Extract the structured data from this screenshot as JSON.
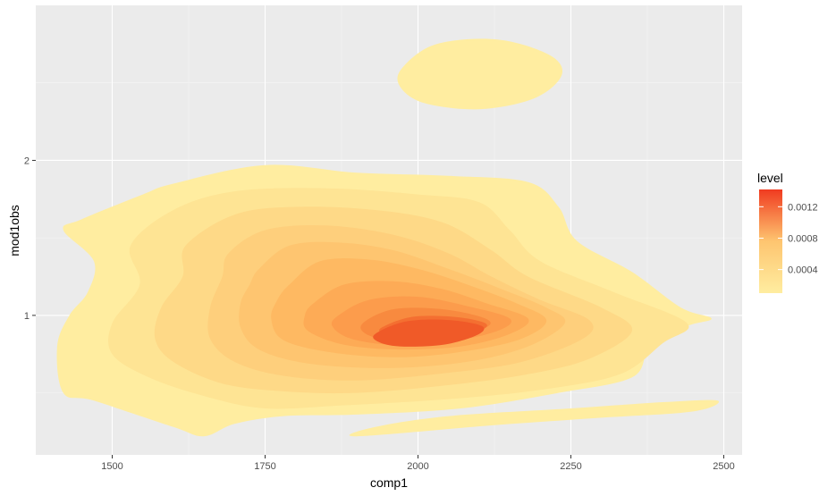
{
  "chart_data": {
    "type": "area",
    "subtype": "filled-density-contour",
    "xlabel": "comp1",
    "ylabel": "mod1obs",
    "x_ticks": [
      1500,
      1750,
      2000,
      2250,
      2500
    ],
    "x_tick_labels": [
      "1500",
      "1750",
      "2000",
      "2250",
      "2500"
    ],
    "y_ticks": [
      1,
      2
    ],
    "y_tick_labels": [
      "1",
      "2"
    ],
    "xlim": [
      1375,
      2530
    ],
    "ylim": [
      0.1,
      3.0
    ],
    "grid": true,
    "background": "#ebebeb",
    "legend": {
      "title": "level",
      "position": "right",
      "ticks": [
        0.0004,
        0.0008,
        0.0012
      ],
      "tick_labels": [
        "0.0004",
        "0.0008",
        "0.0012"
      ],
      "range": [
        0.0001,
        0.00142
      ],
      "color_low": "#ffeda0",
      "color_high": "#f03b20"
    },
    "contours": [
      {
        "level": 0.0001,
        "color": "#ffeda0",
        "shapes": [
          [
            [
              1450,
              1.62
            ],
            [
              1550,
              1.78
            ],
            [
              1600,
              1.85
            ],
            [
              1750,
              1.97
            ],
            [
              1900,
              1.92
            ],
            [
              2050,
              1.9
            ],
            [
              2180,
              1.86
            ],
            [
              2230,
              1.7
            ],
            [
              2260,
              1.48
            ],
            [
              2350,
              1.28
            ],
            [
              2430,
              1.05
            ],
            [
              2480,
              0.98
            ],
            [
              2440,
              0.93
            ],
            [
              2380,
              0.8
            ],
            [
              2350,
              0.6
            ],
            [
              2230,
              0.5
            ],
            [
              2070,
              0.4
            ],
            [
              1900,
              0.36
            ],
            [
              1780,
              0.35
            ],
            [
              1700,
              0.3
            ],
            [
              1650,
              0.22
            ],
            [
              1600,
              0.28
            ],
            [
              1470,
              0.45
            ],
            [
              1420,
              0.5
            ],
            [
              1410,
              0.8
            ],
            [
              1430,
              1.0
            ],
            [
              1460,
              1.15
            ],
            [
              1470,
              1.35
            ],
            [
              1420,
              1.55
            ]
          ],
          [
            [
              1975,
              2.6
            ],
            [
              2030,
              2.75
            ],
            [
              2130,
              2.78
            ],
            [
              2215,
              2.68
            ],
            [
              2235,
              2.55
            ],
            [
              2190,
              2.4
            ],
            [
              2100,
              2.33
            ],
            [
              2010,
              2.37
            ],
            [
              1970,
              2.48
            ]
          ],
          [
            [
              1900,
              0.22
            ],
            [
              2120,
              0.29
            ],
            [
              2300,
              0.34
            ],
            [
              2450,
              0.38
            ],
            [
              2490,
              0.45
            ],
            [
              2400,
              0.44
            ],
            [
              2250,
              0.4
            ],
            [
              2050,
              0.35
            ],
            [
              1930,
              0.28
            ]
          ]
        ]
      },
      {
        "level": 0.0002,
        "color": "#fee494",
        "shapes": [
          [
            [
              1530,
              1.45
            ],
            [
              1600,
              1.68
            ],
            [
              1700,
              1.8
            ],
            [
              1850,
              1.82
            ],
            [
              2000,
              1.78
            ],
            [
              2100,
              1.73
            ],
            [
              2150,
              1.55
            ],
            [
              2200,
              1.35
            ],
            [
              2320,
              1.15
            ],
            [
              2440,
              0.95
            ],
            [
              2400,
              0.82
            ],
            [
              2330,
              0.62
            ],
            [
              2200,
              0.52
            ],
            [
              2050,
              0.46
            ],
            [
              1880,
              0.42
            ],
            [
              1750,
              0.4
            ],
            [
              1650,
              0.48
            ],
            [
              1560,
              0.6
            ],
            [
              1500,
              0.75
            ],
            [
              1500,
              0.95
            ],
            [
              1545,
              1.2
            ]
          ]
        ]
      },
      {
        "level": 0.0003,
        "color": "#fed987",
        "shapes": [
          [
            [
              1620,
              1.45
            ],
            [
              1700,
              1.65
            ],
            [
              1800,
              1.7
            ],
            [
              1930,
              1.68
            ],
            [
              2040,
              1.6
            ],
            [
              2120,
              1.42
            ],
            [
              2180,
              1.25
            ],
            [
              2300,
              1.05
            ],
            [
              2350,
              0.9
            ],
            [
              2280,
              0.72
            ],
            [
              2180,
              0.62
            ],
            [
              2050,
              0.55
            ],
            [
              1900,
              0.5
            ],
            [
              1780,
              0.51
            ],
            [
              1680,
              0.56
            ],
            [
              1600,
              0.7
            ],
            [
              1570,
              0.85
            ],
            [
              1580,
              1.05
            ],
            [
              1615,
              1.25
            ]
          ]
        ]
      },
      {
        "level": 0.0004,
        "color": "#fecf7c",
        "shapes": [
          [
            [
              1690,
              1.4
            ],
            [
              1750,
              1.55
            ],
            [
              1850,
              1.58
            ],
            [
              1960,
              1.52
            ],
            [
              2050,
              1.4
            ],
            [
              2120,
              1.25
            ],
            [
              2200,
              1.1
            ],
            [
              2280,
              0.97
            ],
            [
              2270,
              0.85
            ],
            [
              2170,
              0.7
            ],
            [
              2050,
              0.63
            ],
            [
              1900,
              0.58
            ],
            [
              1780,
              0.61
            ],
            [
              1700,
              0.7
            ],
            [
              1660,
              0.85
            ],
            [
              1660,
              1.05
            ],
            [
              1680,
              1.25
            ]
          ]
        ]
      },
      {
        "level": 0.0005,
        "color": "#fec570",
        "shapes": [
          [
            [
              1740,
              1.3
            ],
            [
              1790,
              1.45
            ],
            [
              1870,
              1.47
            ],
            [
              1960,
              1.42
            ],
            [
              2050,
              1.3
            ],
            [
              2130,
              1.18
            ],
            [
              2210,
              1.05
            ],
            [
              2240,
              0.95
            ],
            [
              2180,
              0.8
            ],
            [
              2080,
              0.7
            ],
            [
              1950,
              0.66
            ],
            [
              1820,
              0.69
            ],
            [
              1740,
              0.78
            ],
            [
              1710,
              0.92
            ],
            [
              1710,
              1.08
            ],
            [
              1725,
              1.2
            ]
          ]
        ]
      },
      {
        "level": 0.0006,
        "color": "#feb962",
        "shapes": [
          [
            [
              1790,
              1.2
            ],
            [
              1840,
              1.35
            ],
            [
              1920,
              1.36
            ],
            [
              2000,
              1.3
            ],
            [
              2080,
              1.2
            ],
            [
              2160,
              1.08
            ],
            [
              2210,
              0.97
            ],
            [
              2170,
              0.85
            ],
            [
              2080,
              0.77
            ],
            [
              1970,
              0.73
            ],
            [
              1860,
              0.76
            ],
            [
              1780,
              0.84
            ],
            [
              1760,
              0.98
            ],
            [
              1770,
              1.1
            ]
          ]
        ]
      },
      {
        "level": 0.0007,
        "color": "#fdab56",
        "shapes": [
          [
            [
              1830,
              1.08
            ],
            [
              1880,
              1.2
            ],
            [
              1960,
              1.22
            ],
            [
              2040,
              1.17
            ],
            [
              2110,
              1.08
            ],
            [
              2180,
              0.98
            ],
            [
              2150,
              0.88
            ],
            [
              2070,
              0.8
            ],
            [
              1970,
              0.78
            ],
            [
              1880,
              0.81
            ],
            [
              1820,
              0.9
            ],
            [
              1815,
              1.0
            ]
          ]
        ]
      },
      {
        "level": 0.0008,
        "color": "#fc9c4c",
        "shapes": [
          [
            [
              1870,
              1.0
            ],
            [
              1920,
              1.1
            ],
            [
              2000,
              1.12
            ],
            [
              2080,
              1.06
            ],
            [
              2150,
              0.98
            ],
            [
              2130,
              0.9
            ],
            [
              2050,
              0.83
            ],
            [
              1960,
              0.81
            ],
            [
              1890,
              0.85
            ],
            [
              1860,
              0.93
            ]
          ]
        ]
      },
      {
        "level": 0.001,
        "color": "#f88a3f",
        "shapes": [
          [
            [
              1910,
              0.95
            ],
            [
              1960,
              1.04
            ],
            [
              2040,
              1.04
            ],
            [
              2110,
              0.98
            ],
            [
              2110,
              0.92
            ],
            [
              2040,
              0.86
            ],
            [
              1960,
              0.84
            ],
            [
              1915,
              0.88
            ]
          ]
        ]
      },
      {
        "level": 0.0012,
        "color": "#f46f31",
        "shapes": [
          [
            [
              1940,
              0.92
            ],
            [
              1990,
              0.99
            ],
            [
              2060,
              0.99
            ],
            [
              2110,
              0.95
            ],
            [
              2100,
              0.9
            ],
            [
              2040,
              0.86
            ],
            [
              1980,
              0.86
            ],
            [
              1945,
              0.88
            ]
          ]
        ]
      },
      {
        "level": 0.0013,
        "color": "#f05a28",
        "shapes": [
          [
            [
              1930,
              0.88
            ],
            [
              1980,
              0.96
            ],
            [
              2050,
              0.97
            ],
            [
              2105,
              0.93
            ],
            [
              2095,
              0.87
            ],
            [
              2040,
              0.81
            ],
            [
              1970,
              0.8
            ],
            [
              1935,
              0.83
            ]
          ]
        ]
      }
    ]
  }
}
